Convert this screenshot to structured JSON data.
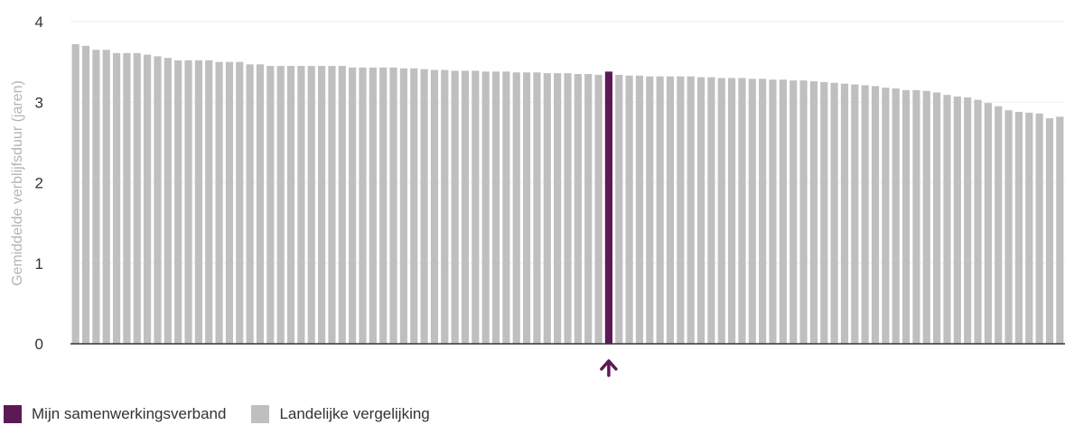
{
  "colors": {
    "highlight": "#5c1a55",
    "comparison": "#bfbfbf",
    "axis": "#333333",
    "gridline": "#eeeeee"
  },
  "chart_data": {
    "type": "bar",
    "title": "",
    "xlabel": "",
    "ylabel": "Gemiddelde verblijfsduur (jaren)",
    "ylim": [
      0,
      4
    ],
    "yticks": [
      "0",
      "1",
      "2",
      "3",
      "4"
    ],
    "grid": true,
    "highlight_index": 52,
    "highlight_marker": "arrow-up-icon",
    "series": [
      {
        "name": "Landelijke vergelijking",
        "values": [
          3.72,
          3.7,
          3.65,
          3.65,
          3.61,
          3.61,
          3.61,
          3.59,
          3.57,
          3.55,
          3.52,
          3.52,
          3.52,
          3.52,
          3.5,
          3.5,
          3.5,
          3.47,
          3.47,
          3.45,
          3.45,
          3.45,
          3.45,
          3.45,
          3.45,
          3.45,
          3.45,
          3.43,
          3.43,
          3.43,
          3.43,
          3.43,
          3.42,
          3.42,
          3.41,
          3.4,
          3.4,
          3.39,
          3.39,
          3.39,
          3.38,
          3.38,
          3.38,
          3.37,
          3.37,
          3.37,
          3.36,
          3.36,
          3.36,
          3.35,
          3.35,
          3.34,
          3.38,
          3.34,
          3.33,
          3.33,
          3.32,
          3.32,
          3.32,
          3.32,
          3.32,
          3.31,
          3.31,
          3.3,
          3.3,
          3.3,
          3.29,
          3.29,
          3.28,
          3.28,
          3.27,
          3.27,
          3.26,
          3.25,
          3.24,
          3.23,
          3.22,
          3.21,
          3.2,
          3.18,
          3.17,
          3.15,
          3.15,
          3.14,
          3.12,
          3.09,
          3.07,
          3.06,
          3.03,
          2.99,
          2.95,
          2.9,
          2.88,
          2.87,
          2.86,
          2.8,
          2.82
        ]
      }
    ]
  },
  "legend": {
    "items": [
      {
        "label": "Mijn samenwerkingsverband",
        "color": "#5c1a55"
      },
      {
        "label": "Landelijke vergelijking",
        "color": "#bfbfbf"
      }
    ]
  }
}
